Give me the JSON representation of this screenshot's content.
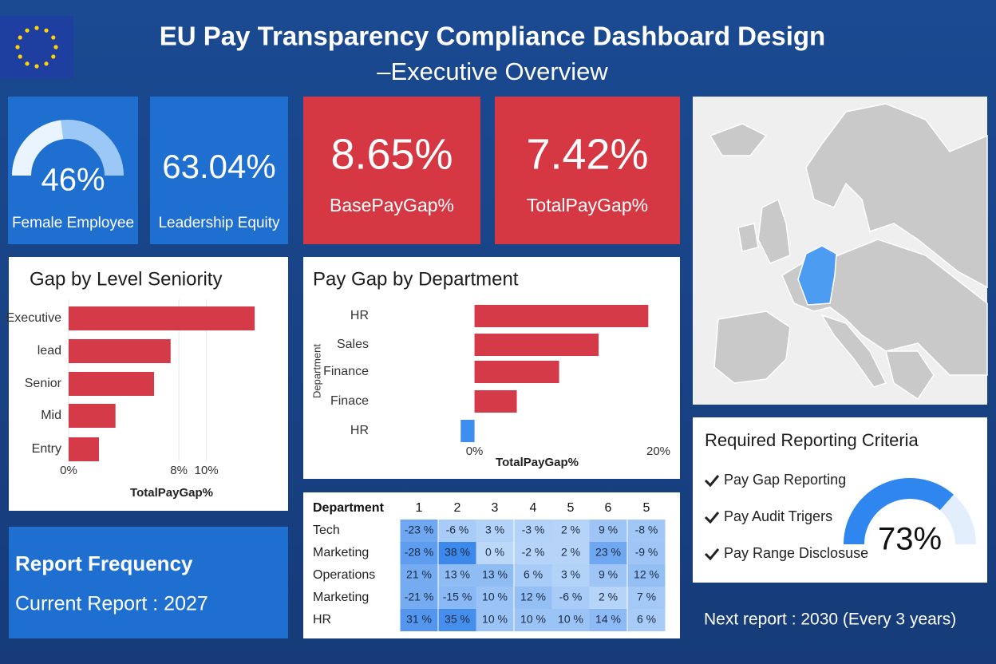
{
  "header": {
    "title": "EU Pay Transparency Compliance Dashboard Design",
    "subtitle": "–Executive Overview"
  },
  "kpis": [
    {
      "value": 46,
      "value_label": "46%",
      "label": "Female Employee",
      "gauge": true,
      "color": "#1f6fd1"
    },
    {
      "value": 63.04,
      "value_label": "63.04%",
      "label": "Leadership Equity",
      "gauge": false,
      "color": "#1f6fd1"
    },
    {
      "value": 8.65,
      "value_label": "8.65%",
      "label": "BasePayGap%",
      "gauge": false,
      "color": "#d63843"
    },
    {
      "value": 7.42,
      "value_label": "7.42%",
      "label": "TotalPayGap%",
      "gauge": false,
      "color": "#d63843"
    }
  ],
  "chart_data": [
    {
      "type": "bar",
      "orientation": "horizontal",
      "title": "Gap by Level Seniority",
      "categories": [
        "Executive",
        "lead",
        "Senior",
        "Mid",
        "Entry"
      ],
      "values": [
        13.5,
        7.4,
        6.2,
        3.4,
        2.2
      ],
      "color": "#d43a47",
      "xlim": [
        0,
        15
      ],
      "xticks": [
        {
          "value": 0,
          "label": "0%"
        },
        {
          "value": 8,
          "label": "8%"
        },
        {
          "value": 10,
          "label": "10%"
        }
      ],
      "x_label": "TotalPayGap%",
      "grid": true
    },
    {
      "type": "bar",
      "orientation": "horizontal",
      "title": "Pay Gap by Department",
      "y_label": "Department",
      "categories": [
        "HR",
        "Sales",
        "Finance",
        "Finace",
        "HR"
      ],
      "values": [
        18.9,
        13.5,
        9.2,
        4.6,
        -1.5
      ],
      "color": "#d43a47",
      "negative_color": "#3d8ef0",
      "xlim": [
        -3,
        20
      ],
      "xticks": [
        {
          "value": 0,
          "label": "0%"
        },
        {
          "value": 20,
          "label": "20%"
        }
      ],
      "x_label": "TotalPayGap%",
      "grid": false
    }
  ],
  "heatmap": {
    "header": [
      "Department",
      "1",
      "2",
      "3",
      "4",
      "5",
      "6",
      "5"
    ],
    "rows": [
      [
        "Tech",
        "-23 %",
        "-6 %",
        "3 %",
        "-3 %",
        "2 %",
        "9 %",
        "-8 %"
      ],
      [
        "Marketing",
        "-28 %",
        "38 %",
        "0 %",
        "-2 %",
        "2 %",
        "23 %",
        "-9 %"
      ],
      [
        "Operations",
        "21 %",
        "13 %",
        "13 %",
        "6 %",
        "3 %",
        "9 %",
        "12 %"
      ],
      [
        "Marketing",
        "-21 %",
        "-15 %",
        "10 %",
        "12 %",
        "-6 %",
        "2 %",
        "7 %"
      ],
      [
        "HR",
        "31 %",
        "35 %",
        "10 %",
        "10 %",
        "10 %",
        "14 %",
        "6 %"
      ]
    ]
  },
  "report_frequency": {
    "title": "Report Frequency",
    "current": "Current Report : 2027"
  },
  "criteria": {
    "title": "Required Reporting Criteria",
    "items": [
      "Pay Gap Reporting",
      "Pay Audit Trigers",
      "Pay Range Disclosuse"
    ],
    "gauge": {
      "value": 73,
      "value_label": "73%",
      "color": "#2f86ef"
    }
  },
  "footer": "Next report : 2030 (Every 3 years)"
}
